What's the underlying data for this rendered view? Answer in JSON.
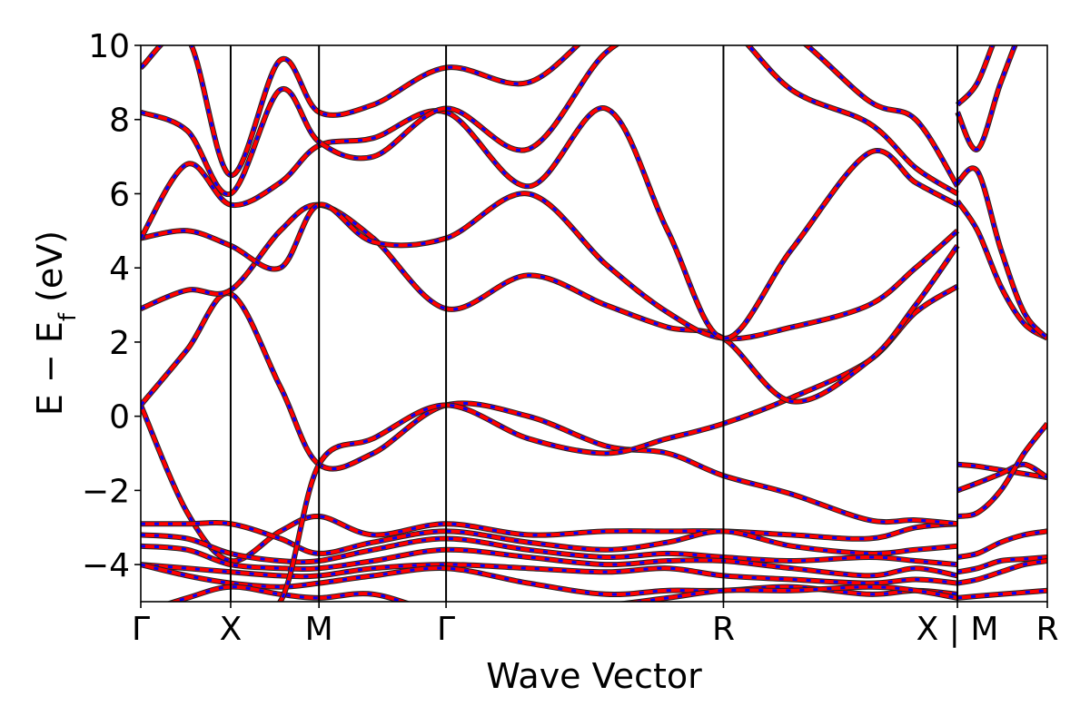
{
  "chart_data": {
    "type": "line",
    "title": "",
    "xlabel": "Wave Vector",
    "ylabel": "E − E_f (eV)",
    "ylabel_parts": {
      "main": "E − E",
      "sub": "f",
      "unit": " (eV)"
    },
    "ylim": [
      -5,
      10
    ],
    "xlim": [
      0,
      5.85
    ],
    "yticks": [
      -4,
      -2,
      0,
      2,
      4,
      6,
      8,
      10
    ],
    "ytick_labels": [
      "−4",
      "−2",
      "0",
      "2",
      "4",
      "6",
      "8",
      "10"
    ],
    "kpoints": [
      {
        "label": "Γ",
        "x": 0
      },
      {
        "label": "X",
        "x": 0.58
      },
      {
        "label": "M",
        "x": 1.15
      },
      {
        "label": "Γ",
        "x": 1.97
      },
      {
        "label": "R",
        "x": 3.76
      },
      {
        "label": "X | M",
        "x": 5.27
      },
      {
        "label": "R",
        "x": 5.85
      }
    ],
    "colors": {
      "series_a": "#ff0000",
      "series_b": "#0000ff",
      "frame": "#000000"
    },
    "line_styles": {
      "series_a": "solid",
      "series_b": "dashed"
    },
    "bands": [
      {
        "x": [
          0,
          0.3,
          0.58,
          0.9,
          1.15,
          1.5,
          1.97,
          2.5,
          3.0,
          3.4,
          3.76,
          4.2,
          4.7,
          5.0,
          5.27
        ],
        "y": [
          0.3,
          -2.6,
          -3.9,
          -3.1,
          -2.7,
          -3.2,
          -2.9,
          -3.2,
          -3.1,
          -3.1,
          -3.1,
          -3.2,
          -3.3,
          -3.0,
          -2.9
        ]
      },
      {
        "x": [
          0,
          0.3,
          0.58,
          0.9,
          1.15,
          1.5,
          1.97,
          2.5,
          3.0,
          3.4,
          3.76,
          4.2,
          4.7,
          5.0,
          5.27
        ],
        "y": [
          -2.9,
          -2.9,
          -2.9,
          -3.3,
          -3.7,
          -3.4,
          -3.1,
          -3.4,
          -3.6,
          -3.4,
          -3.1,
          -3.5,
          -3.7,
          -3.6,
          -3.5
        ]
      },
      {
        "x": [
          0,
          0.3,
          0.58,
          0.9,
          1.15,
          1.5,
          1.97,
          2.5,
          3.0,
          3.4,
          3.76,
          4.2,
          4.7,
          5.0,
          5.27
        ],
        "y": [
          -3.2,
          -3.3,
          -3.7,
          -3.9,
          -3.9,
          -3.6,
          -3.3,
          -3.6,
          -3.8,
          -3.7,
          -3.8,
          -3.9,
          -3.8,
          -3.9,
          -4.0
        ]
      },
      {
        "x": [
          0,
          0.3,
          0.58,
          0.9,
          1.15,
          1.5,
          1.97,
          2.5,
          3.0,
          3.4,
          3.76,
          4.2,
          4.7,
          5.0,
          5.27
        ],
        "y": [
          -3.5,
          -3.6,
          -4.0,
          -4.1,
          -4.1,
          -3.9,
          -3.6,
          -3.8,
          -4.0,
          -3.9,
          -3.9,
          -4.1,
          -4.3,
          -4.1,
          -4.3
        ]
      },
      {
        "x": [
          0,
          0.3,
          0.58,
          0.9,
          1.15,
          1.5,
          1.97,
          2.5,
          3.0,
          3.4,
          3.76,
          4.2,
          4.7,
          5.0,
          5.27
        ],
        "y": [
          -4.0,
          -4.1,
          -4.2,
          -4.3,
          -4.3,
          -4.1,
          -4.0,
          -4.1,
          -4.2,
          -4.1,
          -4.3,
          -4.4,
          -4.5,
          -4.4,
          -4.5
        ]
      },
      {
        "x": [
          0,
          0.3,
          0.58,
          0.9,
          1.15,
          1.5,
          1.97,
          2.5,
          3.0,
          3.4,
          3.76,
          4.2,
          4.7,
          5.0,
          5.27
        ],
        "y": [
          -4.0,
          -4.3,
          -4.5,
          -4.6,
          -4.5,
          -4.3,
          -4.1,
          -4.5,
          -4.8,
          -4.7,
          -4.7,
          -4.6,
          -4.8,
          -4.7,
          -4.8
        ]
      },
      {
        "x": [
          0,
          0.3,
          0.58,
          0.9,
          1.15,
          1.5,
          1.97,
          2.5,
          3.0,
          3.4,
          3.76,
          4.2,
          4.7,
          5.0,
          5.27
        ],
        "y": [
          -5.3,
          -4.9,
          -4.6,
          -4.8,
          -4.9,
          -4.8,
          -5.3,
          -5.2,
          -5.1,
          -4.9,
          -4.7,
          -4.7,
          -4.6,
          -4.7,
          -4.9
        ]
      },
      {
        "x": [
          0,
          0.3,
          0.58,
          0.9,
          1.15,
          1.5,
          1.97,
          2.5,
          3.0,
          3.4,
          3.76,
          4.2,
          4.7,
          5.0,
          5.27
        ],
        "y": [
          0.3,
          1.8,
          3.3,
          0.8,
          -1.3,
          -1.0,
          0.3,
          0.0,
          -0.8,
          -1.0,
          -1.6,
          -2.1,
          -2.8,
          -2.8,
          -2.9
        ]
      },
      {
        "x": [
          0,
          0.3,
          0.58,
          0.9,
          1.15,
          1.5,
          1.97,
          2.5,
          3.0,
          3.4,
          3.76,
          4.2,
          4.7,
          5.0,
          5.27
        ],
        "y": [
          -5.3,
          -5.2,
          -5.1,
          -5.0,
          -1.3,
          -0.6,
          0.3,
          -0.6,
          -1.0,
          -0.6,
          -0.2,
          0.5,
          1.5,
          2.8,
          3.5
        ]
      },
      {
        "x": [
          0,
          0.3,
          0.58,
          0.9,
          1.15,
          1.5,
          1.97,
          2.5,
          3.0,
          3.4,
          3.76,
          4.2,
          4.7,
          5.0,
          5.27
        ],
        "y": [
          2.9,
          3.4,
          3.4,
          5.0,
          5.7,
          4.8,
          2.9,
          3.8,
          3.0,
          2.4,
          2.1,
          0.4,
          1.5,
          3.0,
          4.6
        ]
      },
      {
        "x": [
          0,
          0.3,
          0.58,
          0.9,
          1.15,
          1.5,
          1.97,
          2.5,
          3.0,
          3.4,
          3.76,
          4.2,
          4.7,
          5.0,
          5.27
        ],
        "y": [
          4.8,
          5.0,
          4.6,
          4.0,
          5.7,
          4.7,
          4.8,
          6.0,
          4.1,
          2.8,
          2.1,
          2.4,
          3.0,
          4.0,
          5.0
        ]
      },
      {
        "x": [
          0,
          0.3,
          0.58,
          0.9,
          1.15,
          1.5,
          1.97,
          2.5,
          3.0,
          3.4,
          3.76,
          4.2,
          4.7,
          5.0,
          5.27
        ],
        "y": [
          4.8,
          6.8,
          5.7,
          6.3,
          7.3,
          7.5,
          8.2,
          6.2,
          8.3,
          5.0,
          2.1,
          4.5,
          7.1,
          6.3,
          5.7
        ]
      },
      {
        "x": [
          0,
          0.3,
          0.58,
          0.9,
          1.15,
          1.5,
          1.97,
          2.5,
          3.0,
          3.4,
          3.76,
          4.2,
          4.7,
          5.0,
          5.27
        ],
        "y": [
          8.2,
          7.7,
          6.0,
          8.8,
          7.4,
          7.0,
          8.3,
          7.2,
          9.8,
          10.5,
          10.6,
          8.8,
          7.9,
          6.7,
          6.0
        ]
      },
      {
        "x": [
          0,
          0.3,
          0.58,
          0.9,
          1.15,
          1.5,
          1.97,
          2.5,
          3.0,
          3.4,
          3.76,
          4.2,
          4.7,
          5.0,
          5.27
        ],
        "y": [
          9.4,
          10.2,
          6.5,
          9.6,
          8.2,
          8.4,
          9.4,
          9.0,
          10.6,
          10.8,
          10.9,
          10.3,
          8.5,
          8.0,
          6.2
        ]
      },
      {
        "x": [
          5.27,
          5.4,
          5.55,
          5.7,
          5.85
        ],
        "y": [
          -1.3,
          -1.35,
          -1.45,
          -1.55,
          -1.65
        ]
      },
      {
        "x": [
          5.27,
          5.4,
          5.55,
          5.7,
          5.85
        ],
        "y": [
          -2.0,
          -1.8,
          -1.55,
          -1.3,
          -1.65
        ]
      },
      {
        "x": [
          5.27,
          5.4,
          5.55,
          5.7,
          5.85
        ],
        "y": [
          -2.7,
          -2.6,
          -2.0,
          -1.0,
          -0.2
        ]
      },
      {
        "x": [
          5.27,
          5.4,
          5.55,
          5.7,
          5.85
        ],
        "y": [
          -3.8,
          -3.7,
          -3.4,
          -3.2,
          -3.1
        ]
      },
      {
        "x": [
          5.27,
          5.4,
          5.55,
          5.7,
          5.85
        ],
        "y": [
          -4.2,
          -4.1,
          -3.9,
          -3.85,
          -3.8
        ]
      },
      {
        "x": [
          5.27,
          5.4,
          5.55,
          5.7,
          5.85
        ],
        "y": [
          -4.5,
          -4.4,
          -4.2,
          -4.0,
          -3.9
        ]
      },
      {
        "x": [
          5.27,
          5.4,
          5.55,
          5.7,
          5.85
        ],
        "y": [
          -4.9,
          -4.85,
          -4.8,
          -4.75,
          -4.7
        ]
      },
      {
        "x": [
          5.27,
          5.4,
          5.55,
          5.7,
          5.85
        ],
        "y": [
          5.8,
          5.0,
          3.5,
          2.5,
          2.1
        ]
      },
      {
        "x": [
          5.27,
          5.4,
          5.55,
          5.7,
          5.85
        ],
        "y": [
          6.3,
          6.6,
          4.5,
          2.8,
          2.1
        ]
      },
      {
        "x": [
          5.27,
          5.4,
          5.55,
          5.7,
          5.85
        ],
        "y": [
          8.2,
          7.2,
          9.0,
          10.5,
          11.0
        ]
      },
      {
        "x": [
          5.27,
          5.4,
          5.55,
          5.7,
          5.85
        ],
        "y": [
          8.4,
          9.0,
          10.5,
          11.0,
          11.5
        ]
      }
    ]
  }
}
